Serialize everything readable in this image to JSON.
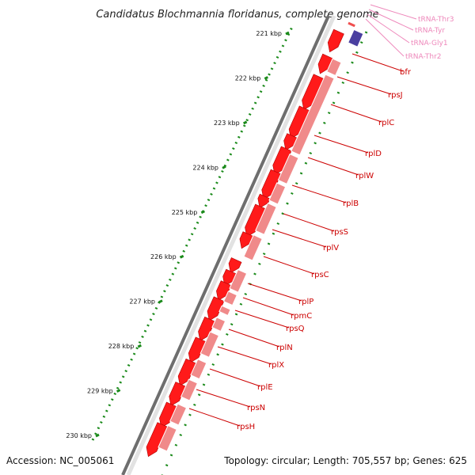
{
  "title": "Candidatus Blochmannia floridanus, complete genome",
  "footer": {
    "accession": "Accession: NC_005061",
    "summary": "Topology: circular; Length: 705,557 bp; Genes: 625"
  },
  "colors": {
    "gene_forward": "#ff1a1a",
    "gene_reverse": "#f08a8a",
    "trna": "#f04e4e",
    "gene_other": "#4a3fa0",
    "gene_label": "#cc0000",
    "trna_label": "#ee88bb",
    "backbone": "#888888",
    "kbp_tick": "#1a8a1a"
  },
  "kbp_ticks": [
    "221 kbp",
    "222 kbp",
    "223 kbp",
    "224 kbp",
    "225 kbp",
    "226 kbp",
    "227 kbp",
    "228 kbp",
    "229 kbp",
    "230 kbp"
  ],
  "trna_labels": [
    "tRNA-Thr3",
    "tRNA-Tyr",
    "tRNA-Gly1",
    "tRNA-Thr2"
  ],
  "gene_labels": [
    "bfr",
    "rpsJ",
    "rplC",
    "rplD",
    "rplW",
    "rplB",
    "rpsS",
    "rplV",
    "rpsC",
    "rplP",
    "rpmC",
    "rpsQ",
    "rplN",
    "rplX",
    "rplE",
    "rpsN",
    "rpsH"
  ]
}
